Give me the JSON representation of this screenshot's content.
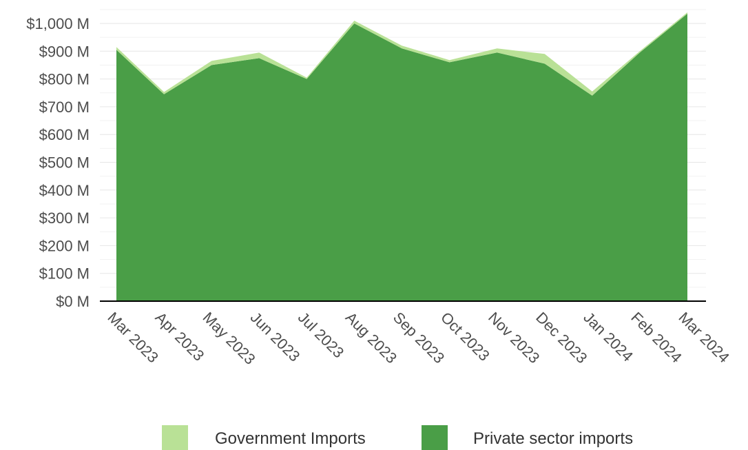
{
  "chart_data": {
    "type": "area",
    "stacked": true,
    "title": "",
    "xlabel": "",
    "ylabel": "",
    "categories": [
      "Mar 2023",
      "Apr 2023",
      "May 2023",
      "Jun 2023",
      "Jul 2023",
      "Aug 2023",
      "Sep 2023",
      "Oct 2023",
      "Nov 2023",
      "Dec 2023",
      "Jan 2024",
      "Feb 2024",
      "Mar 2024"
    ],
    "series": [
      {
        "name": "Private sector imports",
        "color": "#4a9e47",
        "values": [
          905,
          745,
          850,
          875,
          800,
          1000,
          910,
          860,
          895,
          855,
          740,
          895,
          1035
        ]
      },
      {
        "name": "Government Imports",
        "color": "#b9e196",
        "values": [
          10,
          8,
          15,
          20,
          5,
          10,
          10,
          8,
          15,
          35,
          15,
          5,
          5
        ]
      }
    ],
    "ylim": [
      0,
      1000
    ],
    "y_ticks": [
      "$0 M",
      "$100 M",
      "$200 M",
      "$300 M",
      "$400 M",
      "$500 M",
      "$600 M",
      "$700 M",
      "$800 M",
      "$900 M",
      "$1,000 M"
    ],
    "y_tick_values": [
      0,
      100,
      200,
      300,
      400,
      500,
      600,
      700,
      800,
      900,
      1000
    ],
    "grid": true,
    "legend": {
      "position": "bottom",
      "entries": [
        "Government Imports",
        "Private sector imports"
      ]
    }
  }
}
